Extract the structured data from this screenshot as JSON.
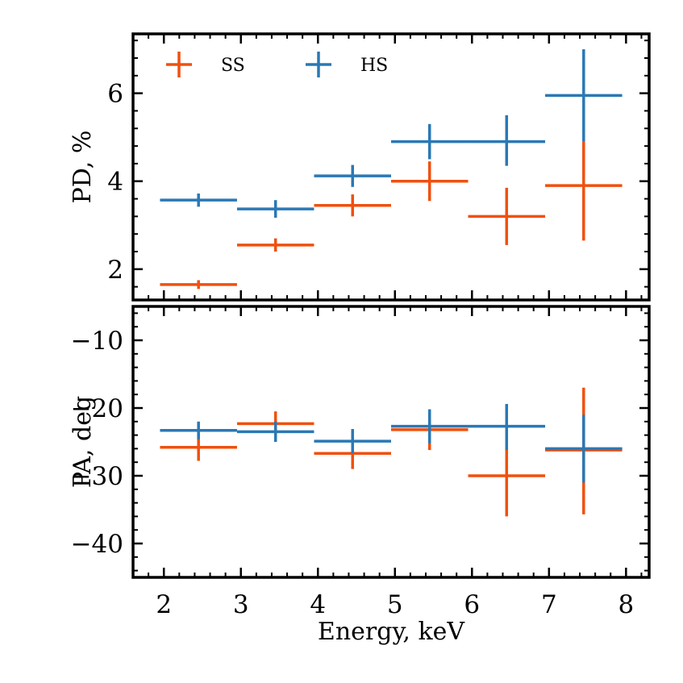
{
  "chart_data": {
    "type": "scatter",
    "x_axis": {
      "label": "Energy, keV",
      "lim": [
        1.6,
        8.3
      ],
      "ticks": [
        2,
        3,
        4,
        5,
        6,
        7,
        8
      ],
      "tick_labels": [
        "2",
        "3",
        "4",
        "5",
        "6",
        "7",
        "8"
      ]
    },
    "legend": {
      "placement": "top-left",
      "entries": [
        {
          "label": "SS",
          "color": "#f0500f"
        },
        {
          "label": "HS",
          "color": "#2a78b5"
        }
      ]
    },
    "panels": [
      {
        "id": "pd",
        "ylabel": "PD, %",
        "ylim": [
          1.3,
          7.35
        ],
        "yticks": [
          2,
          4,
          6
        ],
        "ytick_labels": [
          "2",
          "4",
          "6"
        ],
        "series": [
          {
            "name": "SS",
            "color": "#f0500f",
            "x": [
              2.45,
              3.45,
              4.45,
              5.45,
              6.45,
              7.45
            ],
            "xerr": 0.5,
            "y": [
              1.65,
              2.55,
              3.45,
              4.0,
              3.2,
              3.9
            ],
            "yerr_low": [
              0.1,
              0.15,
              0.25,
              0.45,
              0.65,
              1.25
            ],
            "yerr_high": [
              0.1,
              0.15,
              0.25,
              0.45,
              0.65,
              1.0
            ]
          },
          {
            "name": "HS",
            "color": "#2a78b5",
            "x": [
              2.45,
              3.45,
              4.45,
              5.45,
              6.45,
              7.45
            ],
            "xerr": 0.5,
            "y": [
              3.57,
              3.37,
              4.12,
              4.9,
              4.9,
              5.95
            ],
            "yerr_low": [
              0.15,
              0.2,
              0.25,
              0.4,
              0.55,
              1.05
            ],
            "yerr_high": [
              0.15,
              0.2,
              0.25,
              0.4,
              0.6,
              1.05
            ]
          }
        ]
      },
      {
        "id": "pa",
        "ylabel": "PA, deg",
        "ylim": [
          -45,
          -5
        ],
        "yticks": [
          -10,
          -20,
          -30,
          -40
        ],
        "ytick_labels": [
          "−10",
          "−20",
          "−30",
          "−40"
        ],
        "series": [
          {
            "name": "SS",
            "color": "#f0500f",
            "x": [
              2.45,
              3.45,
              4.45,
              5.45,
              6.45,
              7.45
            ],
            "xerr": 0.5,
            "y": [
              -25.8,
              -22.3,
              -26.7,
              -23.2,
              -30.0,
              -26.2
            ],
            "yerr_low": [
              2.0,
              1.8,
              2.3,
              3.0,
              6.0,
              9.5
            ],
            "yerr_high": [
              2.0,
              1.8,
              2.3,
              3.0,
              4.0,
              9.2
            ]
          },
          {
            "name": "HS",
            "color": "#2a78b5",
            "x": [
              2.45,
              3.45,
              4.45,
              5.45,
              6.45,
              7.45
            ],
            "xerr": 0.5,
            "y": [
              -23.3,
              -23.5,
              -24.9,
              -22.7,
              -22.7,
              -26.0
            ],
            "yerr_low": [
              1.3,
              1.5,
              1.8,
              2.5,
              3.5,
              5.0
            ],
            "yerr_high": [
              1.3,
              1.5,
              1.8,
              2.5,
              3.3,
              5.0
            ]
          }
        ]
      }
    ]
  }
}
